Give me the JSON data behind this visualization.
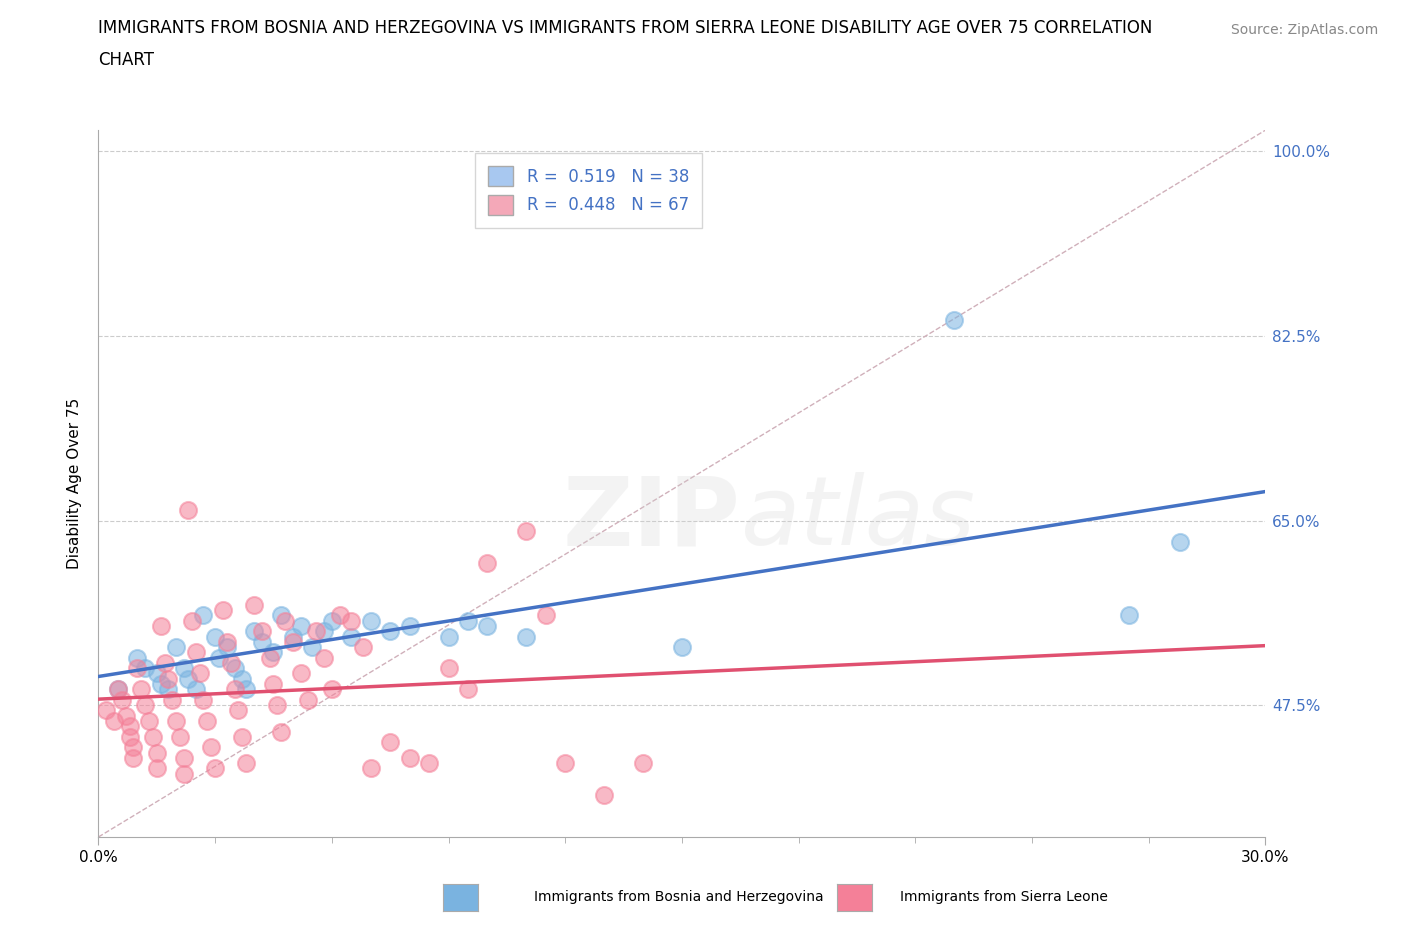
{
  "title_line1": "IMMIGRANTS FROM BOSNIA AND HERZEGOVINA VS IMMIGRANTS FROM SIERRA LEONE DISABILITY AGE OVER 75 CORRELATION",
  "title_line2": "CHART",
  "source": "Source: ZipAtlas.com",
  "ylabel": "Disability Age Over 75",
  "xlim": [
    0.0,
    0.3
  ],
  "ylim": [
    0.35,
    1.02
  ],
  "yticks": [
    0.475,
    0.65,
    0.825,
    1.0
  ],
  "ytick_labels": [
    "47.5%",
    "65.0%",
    "82.5%",
    "100.0%"
  ],
  "xticks": [
    0.0,
    0.3
  ],
  "xtick_labels": [
    "0.0%",
    "30.0%"
  ],
  "watermark": "ZIPatlas",
  "legend_entries": [
    {
      "label": "R =  0.519   N = 38",
      "color": "#a8c8f0"
    },
    {
      "label": "R =  0.448   N = 67",
      "color": "#f4a8b8"
    }
  ],
  "bosnia_color": "#7ab3e0",
  "sierra_color": "#f48098",
  "bosnia_line_color": "#4472c4",
  "sierra_line_color": "#e05070",
  "diagonal_color": "#d0b0ba",
  "background_color": "#ffffff",
  "grid_color": "#cccccc",
  "title_fontsize": 12,
  "axis_label_fontsize": 11,
  "tick_fontsize": 11,
  "legend_fontsize": 12,
  "source_fontsize": 10,
  "bosnia_points": [
    [
      0.005,
      0.49
    ],
    [
      0.01,
      0.52
    ],
    [
      0.012,
      0.51
    ],
    [
      0.015,
      0.505
    ],
    [
      0.016,
      0.495
    ],
    [
      0.018,
      0.49
    ],
    [
      0.02,
      0.53
    ],
    [
      0.022,
      0.51
    ],
    [
      0.023,
      0.5
    ],
    [
      0.025,
      0.49
    ],
    [
      0.027,
      0.56
    ],
    [
      0.03,
      0.54
    ],
    [
      0.031,
      0.52
    ],
    [
      0.033,
      0.53
    ],
    [
      0.035,
      0.51
    ],
    [
      0.037,
      0.5
    ],
    [
      0.038,
      0.49
    ],
    [
      0.04,
      0.545
    ],
    [
      0.042,
      0.535
    ],
    [
      0.045,
      0.525
    ],
    [
      0.047,
      0.56
    ],
    [
      0.05,
      0.54
    ],
    [
      0.052,
      0.55
    ],
    [
      0.055,
      0.53
    ],
    [
      0.058,
      0.545
    ],
    [
      0.06,
      0.555
    ],
    [
      0.065,
      0.54
    ],
    [
      0.07,
      0.555
    ],
    [
      0.075,
      0.545
    ],
    [
      0.08,
      0.55
    ],
    [
      0.09,
      0.54
    ],
    [
      0.095,
      0.555
    ],
    [
      0.1,
      0.55
    ],
    [
      0.11,
      0.54
    ],
    [
      0.15,
      0.53
    ],
    [
      0.22,
      0.84
    ],
    [
      0.265,
      0.56
    ],
    [
      0.278,
      0.63
    ]
  ],
  "sierra_points": [
    [
      0.002,
      0.47
    ],
    [
      0.004,
      0.46
    ],
    [
      0.005,
      0.49
    ],
    [
      0.006,
      0.48
    ],
    [
      0.007,
      0.465
    ],
    [
      0.008,
      0.455
    ],
    [
      0.008,
      0.445
    ],
    [
      0.009,
      0.435
    ],
    [
      0.009,
      0.425
    ],
    [
      0.01,
      0.51
    ],
    [
      0.011,
      0.49
    ],
    [
      0.012,
      0.475
    ],
    [
      0.013,
      0.46
    ],
    [
      0.014,
      0.445
    ],
    [
      0.015,
      0.43
    ],
    [
      0.015,
      0.415
    ],
    [
      0.016,
      0.55
    ],
    [
      0.017,
      0.515
    ],
    [
      0.018,
      0.5
    ],
    [
      0.019,
      0.48
    ],
    [
      0.02,
      0.46
    ],
    [
      0.021,
      0.445
    ],
    [
      0.022,
      0.425
    ],
    [
      0.022,
      0.41
    ],
    [
      0.023,
      0.66
    ],
    [
      0.024,
      0.555
    ],
    [
      0.025,
      0.525
    ],
    [
      0.026,
      0.505
    ],
    [
      0.027,
      0.48
    ],
    [
      0.028,
      0.46
    ],
    [
      0.029,
      0.435
    ],
    [
      0.03,
      0.415
    ],
    [
      0.032,
      0.565
    ],
    [
      0.033,
      0.535
    ],
    [
      0.034,
      0.515
    ],
    [
      0.035,
      0.49
    ],
    [
      0.036,
      0.47
    ],
    [
      0.037,
      0.445
    ],
    [
      0.038,
      0.42
    ],
    [
      0.04,
      0.57
    ],
    [
      0.042,
      0.545
    ],
    [
      0.044,
      0.52
    ],
    [
      0.045,
      0.495
    ],
    [
      0.046,
      0.475
    ],
    [
      0.047,
      0.45
    ],
    [
      0.048,
      0.555
    ],
    [
      0.05,
      0.535
    ],
    [
      0.052,
      0.505
    ],
    [
      0.054,
      0.48
    ],
    [
      0.056,
      0.545
    ],
    [
      0.058,
      0.52
    ],
    [
      0.06,
      0.49
    ],
    [
      0.062,
      0.56
    ],
    [
      0.065,
      0.555
    ],
    [
      0.068,
      0.53
    ],
    [
      0.07,
      0.415
    ],
    [
      0.075,
      0.44
    ],
    [
      0.08,
      0.425
    ],
    [
      0.085,
      0.42
    ],
    [
      0.09,
      0.51
    ],
    [
      0.095,
      0.49
    ],
    [
      0.1,
      0.61
    ],
    [
      0.11,
      0.64
    ],
    [
      0.115,
      0.56
    ],
    [
      0.12,
      0.42
    ],
    [
      0.13,
      0.39
    ],
    [
      0.14,
      0.42
    ]
  ]
}
